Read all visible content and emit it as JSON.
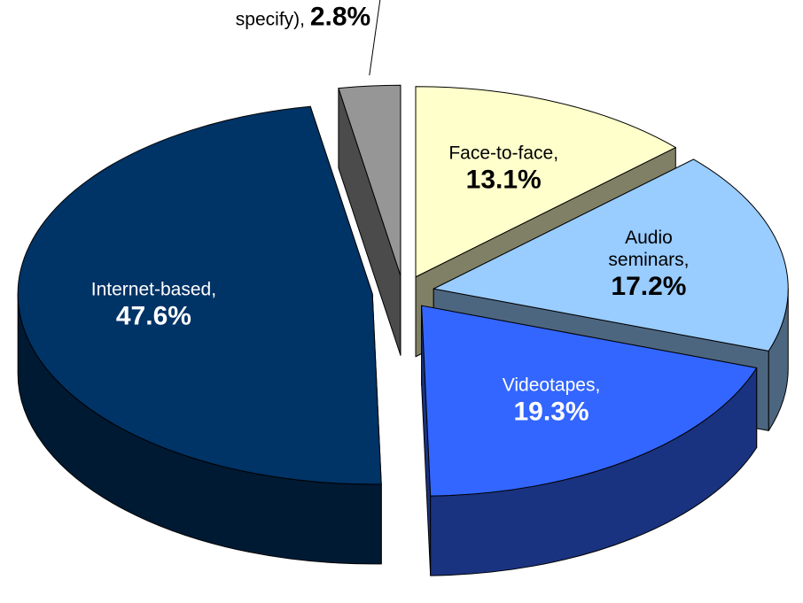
{
  "chart_data": {
    "type": "pie",
    "categories": [
      "Face-to-face,",
      "Audio seminars,",
      "Videotapes,",
      "Internet-based,",
      "Other (please specify),"
    ],
    "values": [
      13.1,
      17.2,
      19.3,
      47.6,
      2.8
    ],
    "value_labels": [
      "13.1%",
      "17.2%",
      "19.3%",
      "47.6%",
      "2.8%"
    ],
    "colors": [
      "#FFFFCC",
      "#99CCFF",
      "#3366FF",
      "#003366",
      "#969696"
    ],
    "exploded": true,
    "three_d": true
  }
}
